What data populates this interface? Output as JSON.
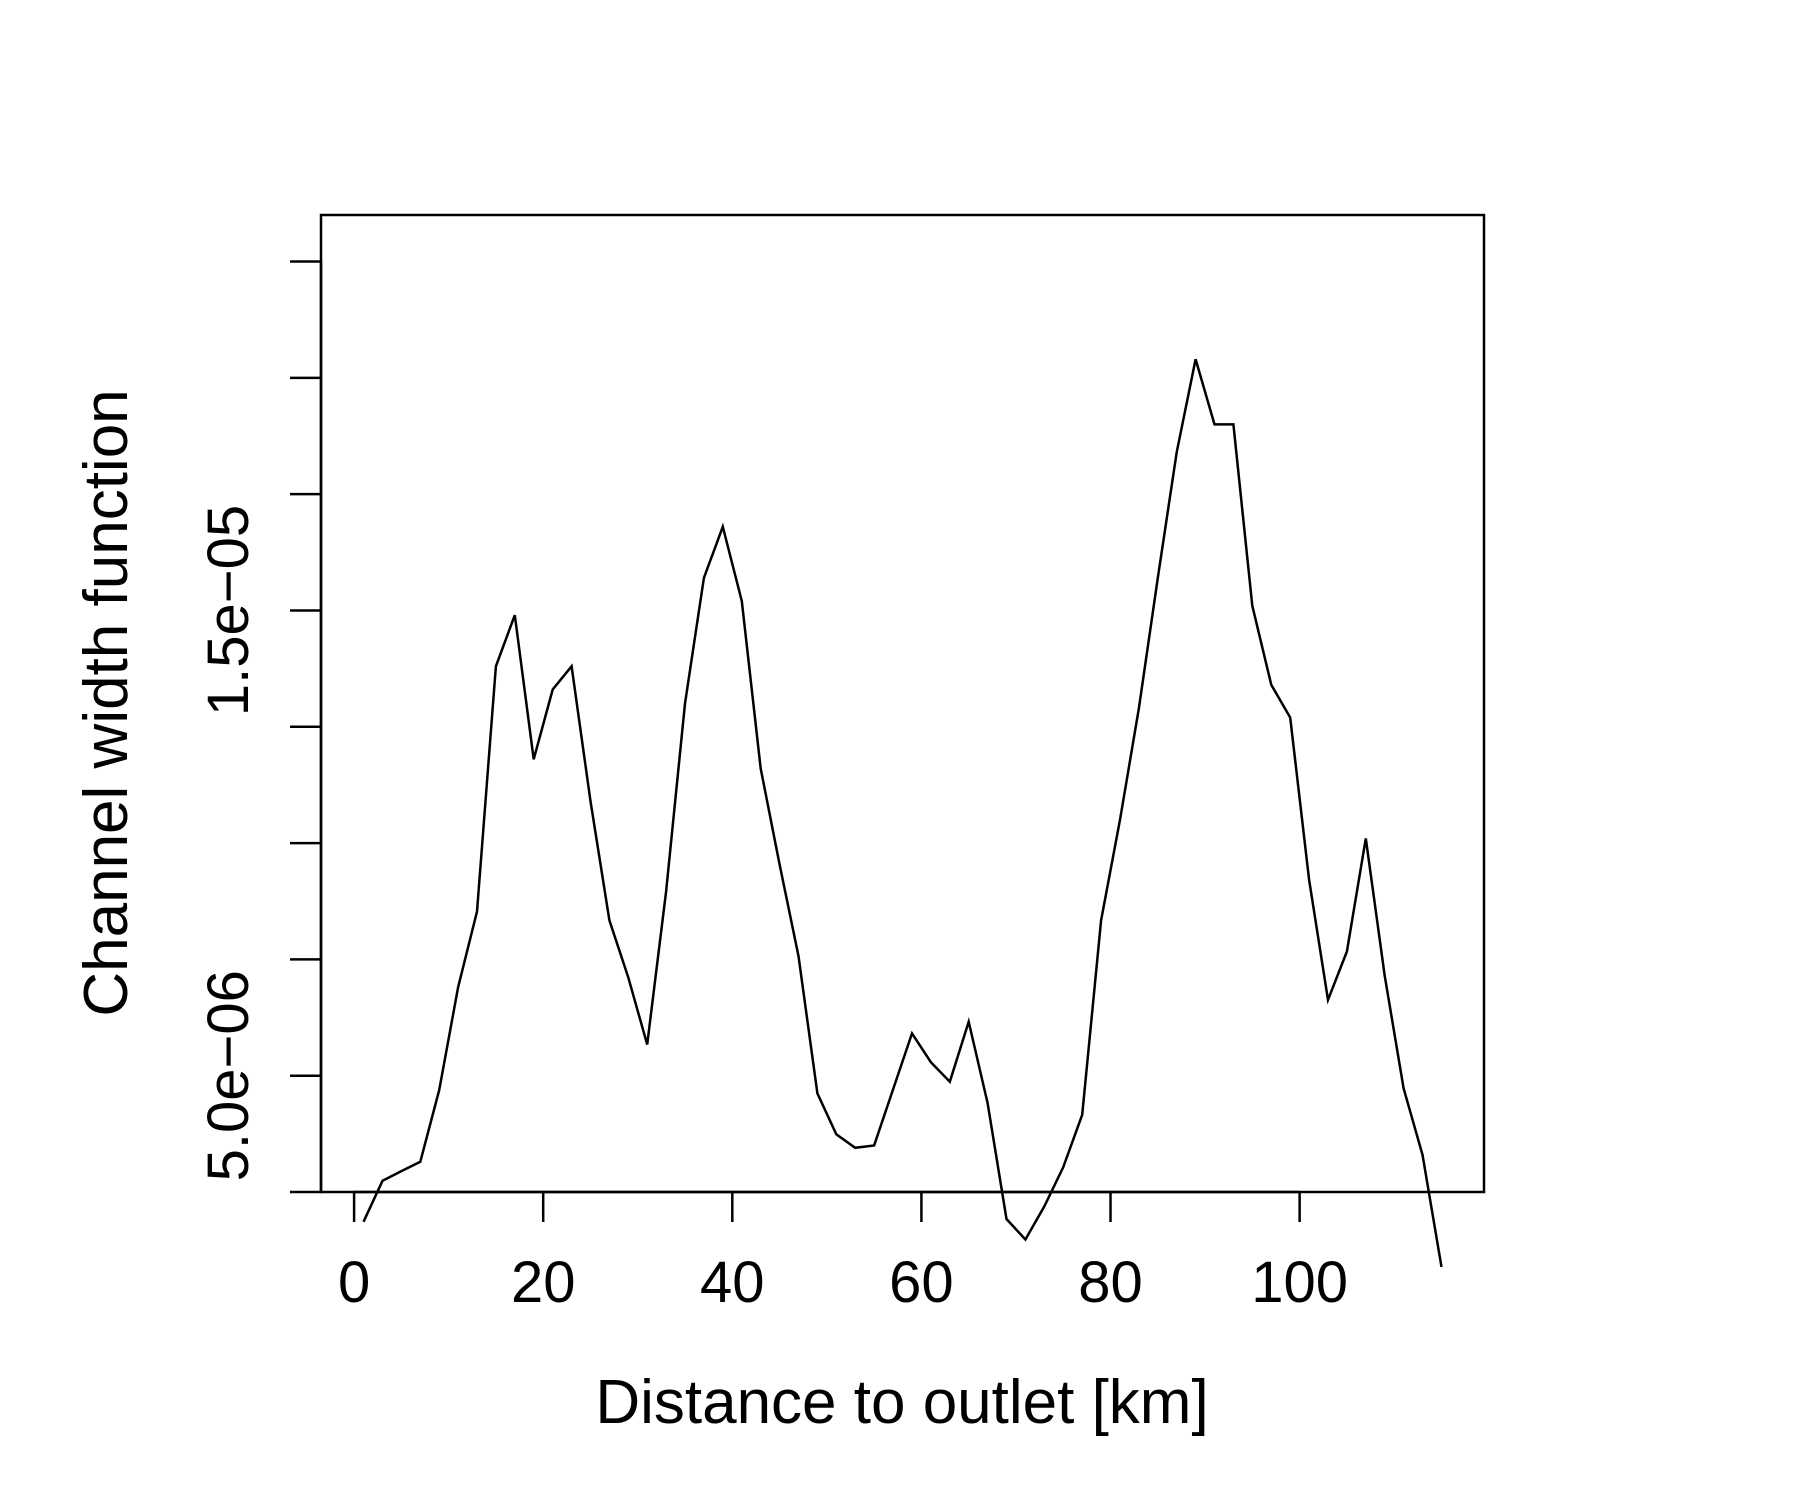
{
  "chart_data": {
    "type": "line",
    "xlabel": "Distance to outlet [km]",
    "ylabel": "Channel width function",
    "x_ticks": [
      0,
      20,
      40,
      60,
      80,
      100
    ],
    "y_ticks": [
      2.5e-06,
      5e-06,
      7.5e-06,
      1e-05,
      1.25e-05,
      1.5e-05,
      1.75e-05,
      2e-05,
      2.25e-05
    ],
    "y_tick_labels": {
      "0.000005": "5.0e−06",
      "0.000015": "1.5e−05"
    },
    "xlim": [
      -3.5,
      119.5
    ],
    "ylim": [
      2.5e-06,
      2.35e-05
    ],
    "grid": false,
    "legend": "none",
    "color": "#000000",
    "x": [
      1,
      3,
      5,
      7,
      9,
      11,
      13,
      15,
      17,
      19,
      21,
      23,
      25,
      27,
      29,
      31,
      33,
      35,
      37,
      39,
      41,
      43,
      45,
      47,
      49,
      51,
      53,
      55,
      57,
      59,
      61,
      63,
      65,
      67,
      69,
      71,
      73,
      75,
      77,
      79,
      81,
      83,
      85,
      87,
      89,
      91,
      93,
      95,
      97,
      99,
      101,
      103,
      105,
      107,
      109,
      111,
      113,
      115
    ],
    "y": [
      1.86e-06,
      2.74e-06,
      2.95e-06,
      3.15e-06,
      4.69e-06,
      6.9e-06,
      8.53e-06,
      1.38e-05,
      1.49e-05,
      1.18e-05,
      1.33e-05,
      1.38e-05,
      1.09e-05,
      8.34e-06,
      7.11e-06,
      5.67e-06,
      8.96e-06,
      1.3e-05,
      1.57e-05,
      1.68e-05,
      1.52e-05,
      1.16e-05,
      9.54e-06,
      7.57e-06,
      4.62e-06,
      3.74e-06,
      3.45e-06,
      3.5e-06,
      4.7e-06,
      5.91e-06,
      5.29e-06,
      4.87e-06,
      6.16e-06,
      4.41e-06,
      1.92e-06,
      1.48e-06,
      2.19e-06,
      3.03e-06,
      4.16e-06,
      8.34e-06,
      1.05e-05,
      1.29e-05,
      1.57e-05,
      1.84e-05,
      2.04e-05,
      1.9e-05,
      1.9e-05,
      1.51e-05,
      1.34e-05,
      1.27e-05,
      9.21e-06,
      6.63e-06,
      7.67e-06,
      1.01e-05,
      7.15e-06,
      4.73e-06,
      3.3e-06,
      8.9e-07
    ]
  }
}
